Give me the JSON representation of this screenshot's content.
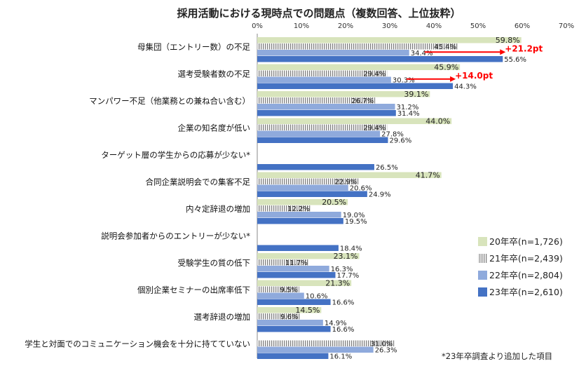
{
  "chart_data": {
    "type": "bar",
    "orientation": "horizontal",
    "title": "採用活動における現時点での問題点（複数回答、上位抜粋）",
    "xlim": [
      0,
      70
    ],
    "x_ticks": [
      "0%",
      "10%",
      "20%",
      "30%",
      "40%",
      "50%",
      "60%",
      "70%"
    ],
    "grid": false,
    "legend_position": "right",
    "categories": [
      "母集団（エントリー数）の不足",
      "選考受験者数の不足",
      "マンパワー不足（他業務との兼ね合い含む）",
      "企業の知名度が低い",
      "ターゲット層の学生からの応募が少ない*",
      "合同企業説明会での集客不足",
      "内々定辞退の増加",
      "説明会参加者からのエントリーが少ない*",
      "受験学生の質の低下",
      "個別企業セミナーの出席率低下",
      "選考辞退の増加",
      "学生と対面でのコミュニケーション機会を十分に持てていない"
    ],
    "series": [
      {
        "name": "20年卒(n=1,726)",
        "color": "#d8e4bc",
        "pattern": "solid",
        "values": [
          59.8,
          45.9,
          39.1,
          44.0,
          null,
          41.7,
          20.5,
          null,
          23.1,
          21.3,
          14.5,
          null
        ],
        "labels": [
          "59.8%",
          "45.9%",
          "39.1%",
          "44.0%",
          "",
          "41.7%",
          "20.5%",
          "",
          "23.1%",
          "21.3%",
          "14.5%",
          ""
        ]
      },
      {
        "name": "21年卒(n=2,439)",
        "color": "#808080",
        "pattern": "stripes",
        "values": [
          45.4,
          29.4,
          26.7,
          29.4,
          null,
          22.9,
          12.2,
          null,
          11.7,
          9.5,
          9.6,
          31.0
        ],
        "labels": [
          "45.4%",
          "29.4%",
          "26.7%",
          "29.4%",
          "",
          "22.9%",
          "12.2%",
          "",
          "11.7%",
          "9.5%",
          "9.6%",
          "31.0%"
        ]
      },
      {
        "name": "22年卒(n=2,804)",
        "color": "#8faadc",
        "pattern": "solid",
        "values": [
          34.4,
          30.3,
          31.2,
          27.8,
          null,
          20.6,
          19.0,
          null,
          16.3,
          10.6,
          14.9,
          26.3
        ],
        "labels": [
          "34.4%",
          "30.3%",
          "31.2%",
          "27.8%",
          "",
          "20.6%",
          "19.0%",
          "",
          "16.3%",
          "10.6%",
          "14.9%",
          "26.3%"
        ]
      },
      {
        "name": "23年卒(n=2,610)",
        "color": "#4472c4",
        "pattern": "solid",
        "values": [
          55.6,
          44.3,
          31.4,
          29.6,
          26.5,
          24.9,
          19.5,
          18.4,
          17.7,
          16.6,
          16.6,
          16.1
        ],
        "labels": [
          "55.6%",
          "44.3%",
          "31.4%",
          "29.6%",
          "26.5%",
          "24.9%",
          "19.5%",
          "18.4%",
          "17.7%",
          "16.6%",
          "16.6%",
          "16.1%"
        ]
      }
    ],
    "annotations": [
      {
        "text": "+21.2pt",
        "category_index": 0,
        "from": 34.4,
        "to": 55.6,
        "color": "#ff0000"
      },
      {
        "text": "+14.0pt",
        "category_index": 1,
        "from": 30.3,
        "to": 44.3,
        "color": "#ff0000"
      }
    ],
    "footnote": "*23年卒調査より追加した項目"
  }
}
